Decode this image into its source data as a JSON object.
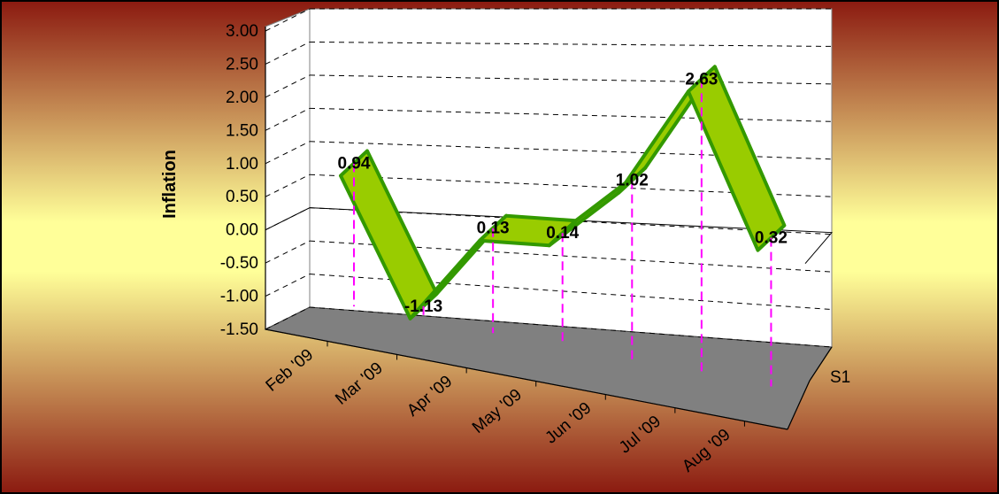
{
  "chart_data": {
    "type": "line",
    "style": "3d-ribbon",
    "categories": [
      "Feb '09",
      "Mar '09",
      "Apr '09",
      "May '09",
      "Jun '09",
      "Jul '09",
      "Aug '09"
    ],
    "series": [
      {
        "name": "S1",
        "values": [
          0.94,
          -1.13,
          0.13,
          0.14,
          1.02,
          2.63,
          0.32
        ]
      }
    ],
    "data_labels": [
      "0.94",
      "-1.13",
      "0.13",
      "0.14",
      "1.02",
      "2.63",
      "0.32"
    ],
    "ylabel": "Inflation",
    "ylim": [
      -1.5,
      3.0
    ],
    "y_ticks": [
      "3.00",
      "2.50",
      "2.00",
      "1.50",
      "1.00",
      "0.50",
      "0.00",
      "-0.50",
      "-1.00",
      "-1.50"
    ],
    "grid": true,
    "colors": {
      "ribbon_fill": "#99cc00",
      "ribbon_edge": "#339900",
      "drop_line": "#ff00ff",
      "floor": "#808080",
      "background_outer": "#8b1a10",
      "background_inner": "#ffff99"
    }
  }
}
